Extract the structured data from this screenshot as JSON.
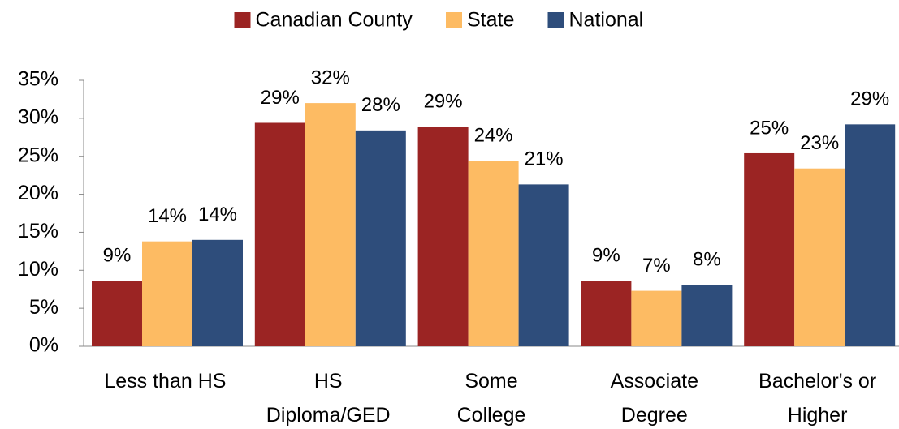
{
  "chart_data": {
    "type": "bar",
    "categories": [
      [
        "Less than HS"
      ],
      [
        "HS",
        "Diploma/GED"
      ],
      [
        "Some",
        "College"
      ],
      [
        "Associate",
        "Degree"
      ],
      [
        "Bachelor's or",
        "Higher"
      ]
    ],
    "series": [
      {
        "name": "Canadian County",
        "color": "#9b2423",
        "values": [
          8.6,
          29.4,
          28.9,
          8.6,
          25.4
        ],
        "value_labels": [
          "9%",
          "29%",
          "29%",
          "9%",
          "25%"
        ]
      },
      {
        "name": "State",
        "color": "#fdbb63",
        "values": [
          13.8,
          32.0,
          24.4,
          7.3,
          23.4
        ],
        "value_labels": [
          "14%",
          "32%",
          "24%",
          "7%",
          "23%"
        ]
      },
      {
        "name": "National",
        "color": "#2e4d7b",
        "values": [
          14.0,
          28.4,
          21.3,
          8.1,
          29.2
        ],
        "value_labels": [
          "14%",
          "28%",
          "21%",
          "8%",
          "29%"
        ]
      }
    ],
    "ylim": [
      0,
      35
    ],
    "yticks": [
      {
        "value": 0,
        "label": "0%"
      },
      {
        "value": 5,
        "label": "5%"
      },
      {
        "value": 10,
        "label": "10%"
      },
      {
        "value": 15,
        "label": "15%"
      },
      {
        "value": 20,
        "label": "20%"
      },
      {
        "value": 25,
        "label": "25%"
      },
      {
        "value": 30,
        "label": "30%"
      },
      {
        "value": 35,
        "label": "35%"
      }
    ],
    "legend": "top"
  }
}
